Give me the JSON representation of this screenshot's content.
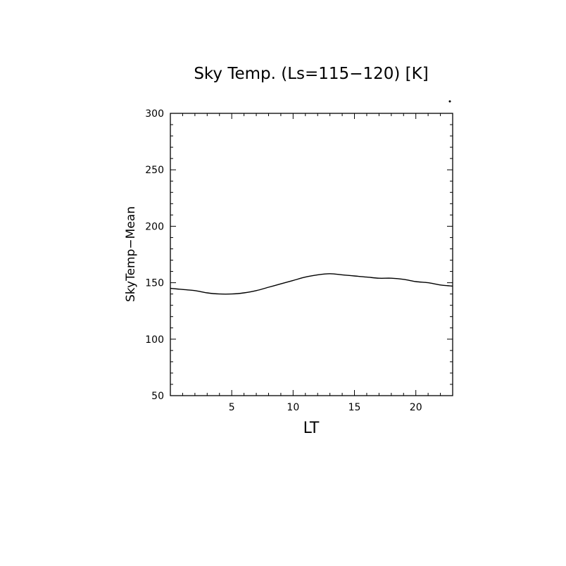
{
  "chart_data": {
    "type": "line",
    "title": "Sky Temp. (Ls=115−120) [K]",
    "xlabel": "LT",
    "ylabel": "SkyTemp−Mean",
    "xlim": [
      0,
      23
    ],
    "ylim": [
      50,
      300
    ],
    "x_ticks": [
      5,
      10,
      15,
      20
    ],
    "x_tick_labels": [
      "5",
      "10",
      "15",
      "20"
    ],
    "y_ticks": [
      50,
      100,
      150,
      200,
      250,
      300
    ],
    "y_tick_labels": [
      "50",
      "100",
      "150",
      "200",
      "250",
      "300"
    ],
    "grid": false,
    "line_color": "#000000",
    "series": [
      {
        "x": [
          0,
          1,
          2,
          3,
          4,
          5,
          6,
          7,
          8,
          9,
          10,
          11,
          12,
          13,
          14,
          15,
          16,
          17,
          18,
          19,
          20,
          21,
          22,
          23
        ],
        "values": [
          145,
          144,
          143,
          141,
          140,
          140,
          141,
          143,
          146,
          149,
          152,
          155,
          157,
          158,
          157,
          156,
          155,
          154,
          154,
          153,
          151,
          150,
          148,
          147
        ]
      }
    ]
  }
}
